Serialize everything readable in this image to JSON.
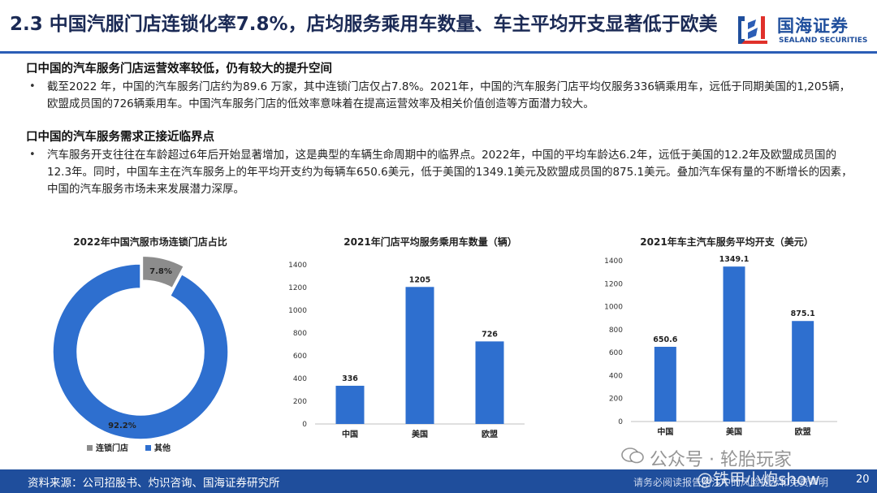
{
  "header": {
    "title": "2.3 中国汽服门店连锁化率7.8%，店均服务乘用车数量、车主平均开支显著低于欧美",
    "logo_cn": "国海证券",
    "logo_en": "SEALAND SECURITIES"
  },
  "sections": [
    {
      "heading": "口中国的汽车服务门店运营效率较低，仍有较大的提升空间",
      "bullet": "•",
      "text": "截至2022 年，中国的汽车服务门店约为89.6 万家，其中连锁门店仅占7.8%。2021年，中国的汽车服务门店平均仅服务336辆乘用车，远低于同期美国的1,205辆，欧盟成员国的726辆乘用车。中国汽车服务门店的低效率意味着在提高运营效率及相关价值创造等方面潜力较大。"
    },
    {
      "heading": "口中国的汽车服务需求正接近临界点",
      "bullet": "•",
      "text": "汽车服务开支往往在车龄超过6年后开始显著增加，这是典型的车辆生命周期中的临界点。2022年，中国的平均车龄达6.2年，远低于美国的12.2年及欧盟成员国的12.3年。同时，中国车主在汽车服务上的年平均开支约为每辆车650.6美元，低于美国的1349.1美元及欧盟成员国的875.1美元。叠加汽车保有量的不断增长的因素，中国的汽车服务市场未来发展潜力深厚。"
    }
  ],
  "chart_data": [
    {
      "type": "pie",
      "title": "2022年中国汽服市场连锁门店占比",
      "categories": [
        "连锁门店",
        "其他"
      ],
      "values": [
        7.8,
        92.2
      ],
      "value_labels": [
        "7.8%",
        "92.2%"
      ],
      "colors": [
        "#8c8c8c",
        "#2e6fcf"
      ],
      "donut": true,
      "legend": "bottom"
    },
    {
      "type": "bar",
      "title": "2021年门店平均服务乘用车数量（辆）",
      "categories": [
        "中国",
        "美国",
        "欧盟"
      ],
      "values": [
        336,
        1205,
        726
      ],
      "value_labels": [
        "336",
        "1205",
        "726"
      ],
      "ylim": [
        0,
        1400
      ],
      "yticks": [
        "0",
        "200",
        "400",
        "600",
        "800",
        "1000",
        "1200",
        "1400"
      ],
      "color": "#2e6fcf"
    },
    {
      "type": "bar",
      "title": "2021年车主汽车服务平均开支（美元）",
      "categories": [
        "中国",
        "美国",
        "欧盟"
      ],
      "values": [
        650.6,
        1349.1,
        875.1
      ],
      "value_labels": [
        "650.6",
        "1349.1",
        "875.1"
      ],
      "ylim": [
        0,
        1400
      ],
      "yticks": [
        "0",
        "200",
        "400",
        "600",
        "800",
        "1000",
        "1200",
        "1400"
      ],
      "color": "#2e6fcf"
    }
  ],
  "footer": {
    "source": "资料来源：公司招股书、灼识咨询、国海证券研究所",
    "right_text": "请务必阅读报告附注中的风险提示和免责声明",
    "page": "20"
  },
  "watermark": {
    "line1": "公众号 · 轮胎玩家",
    "line2": "@铁甲小炮show"
  }
}
